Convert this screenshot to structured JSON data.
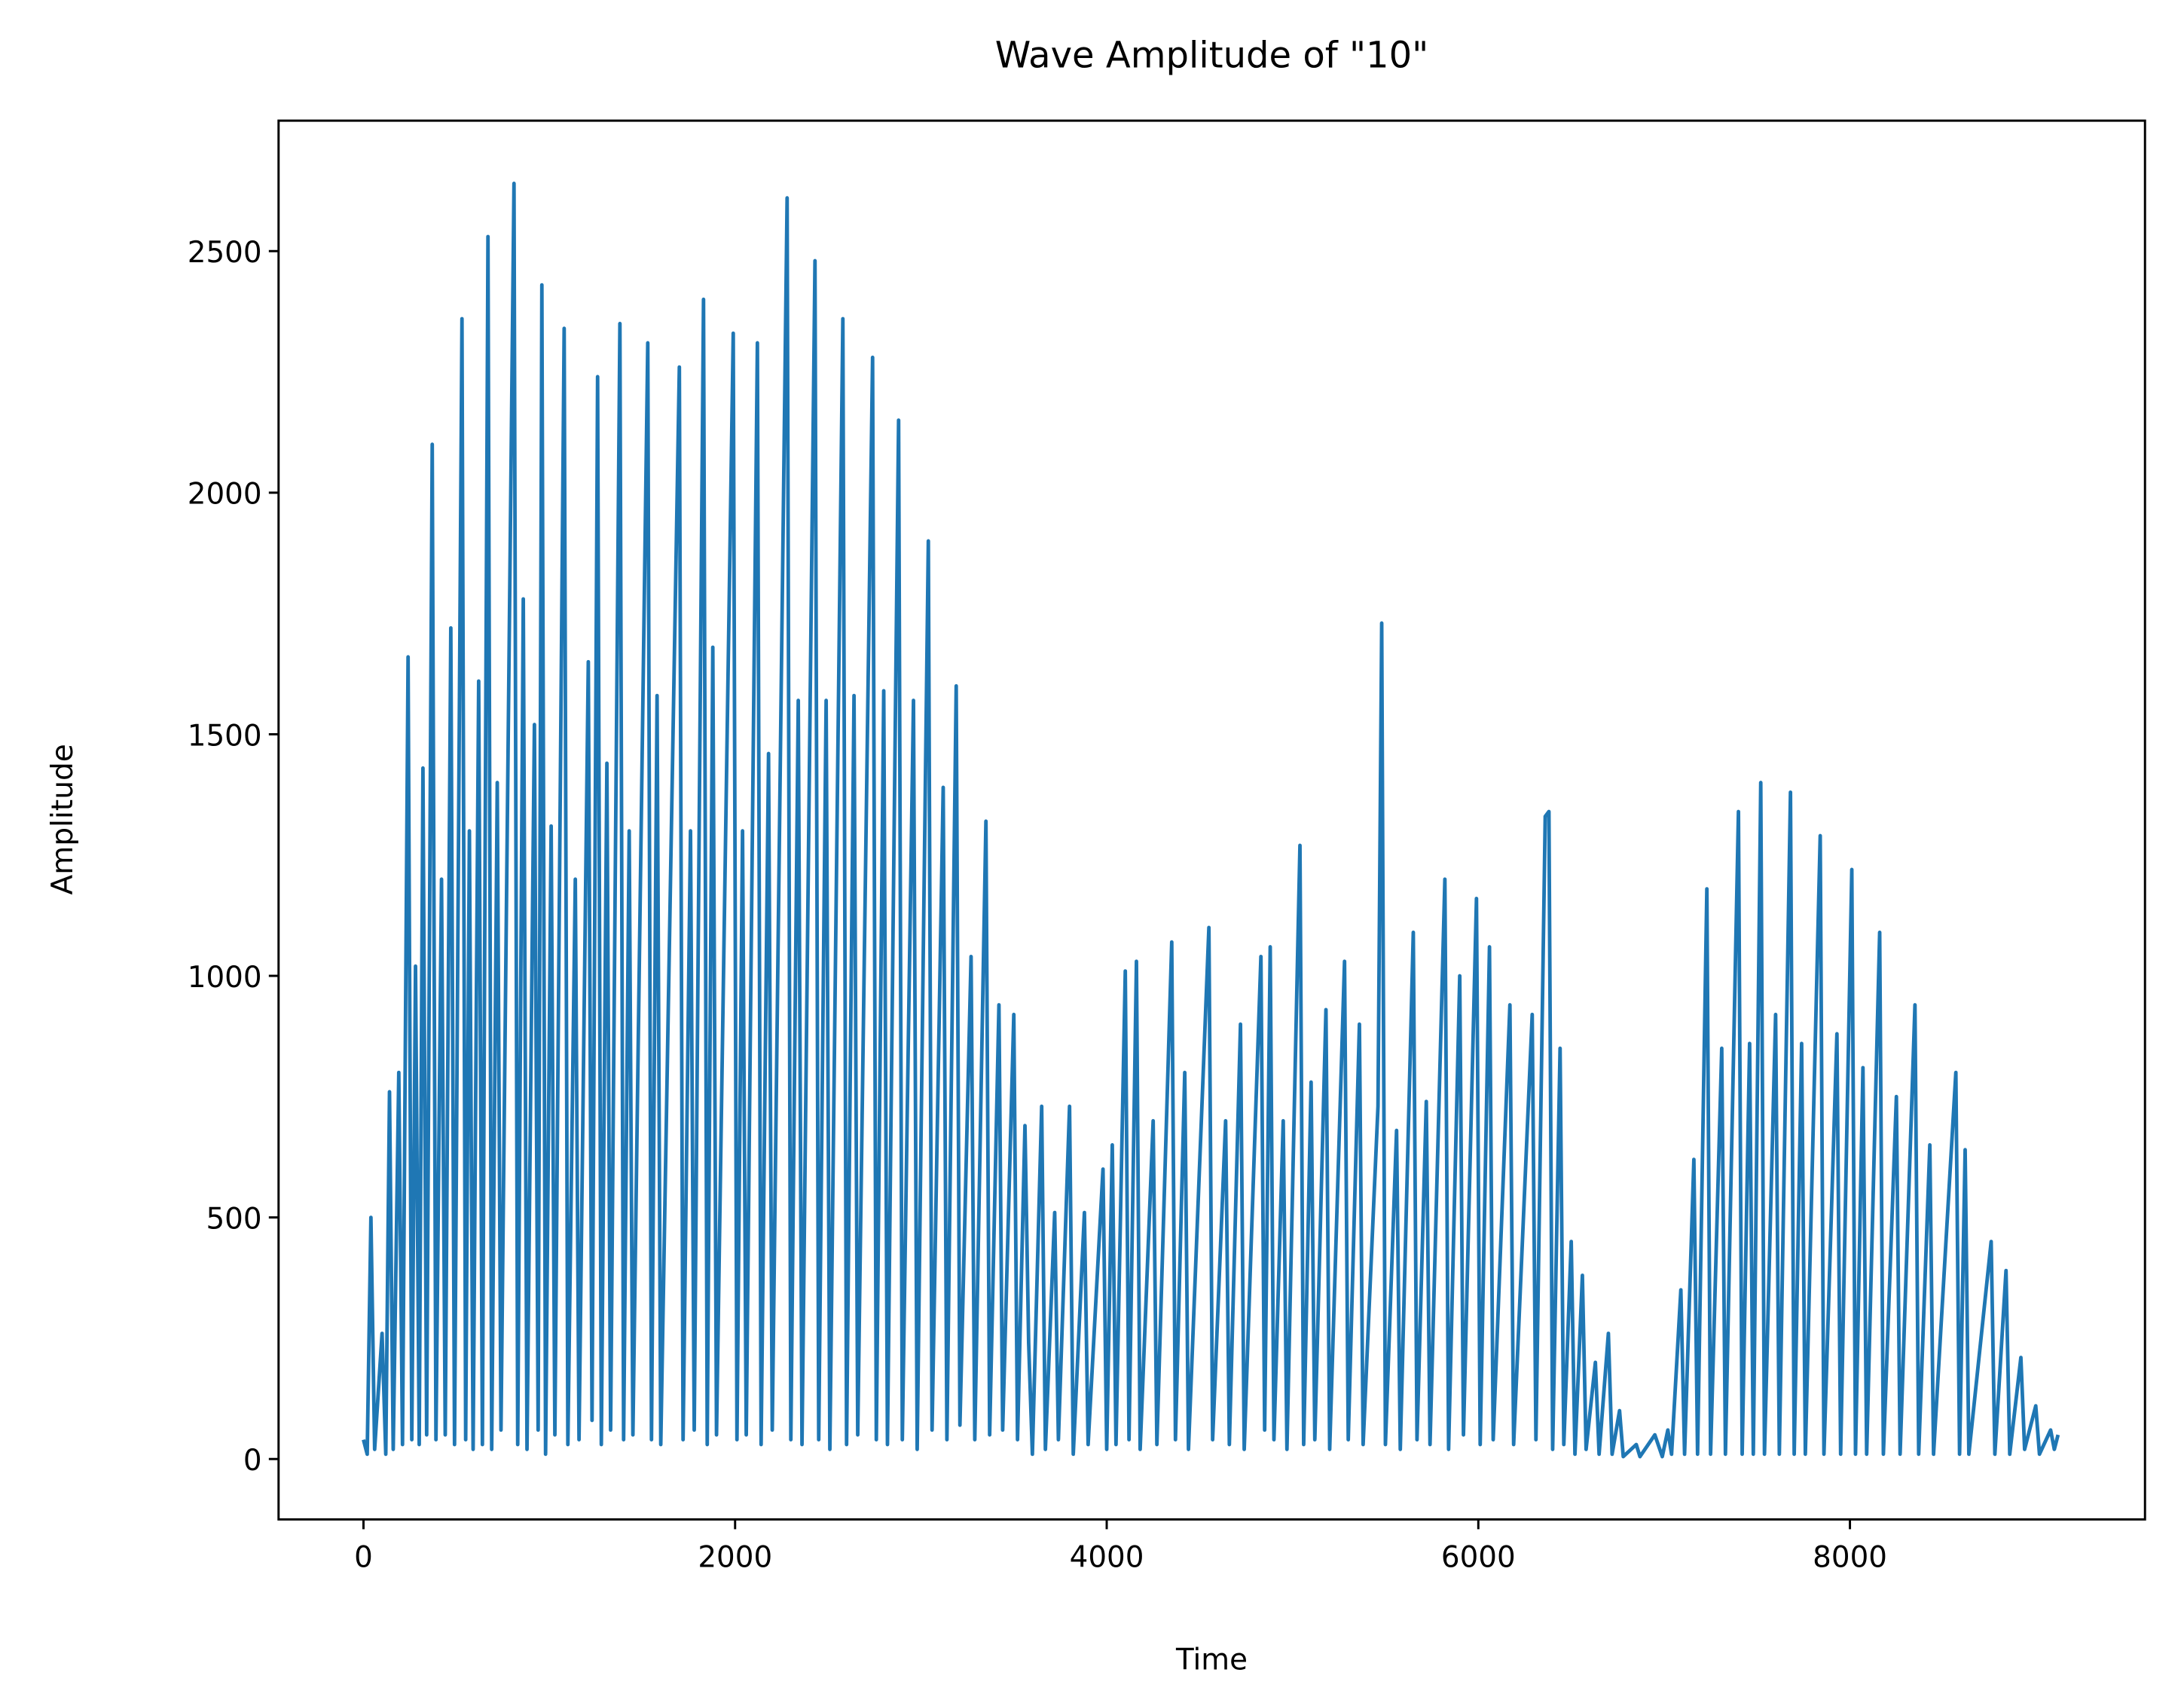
{
  "chart_data": {
    "type": "line",
    "title": "Wave Amplitude of \"10\"",
    "x_label": "Time",
    "y_label": "Amplitude",
    "color": "#1f77b4",
    "xlim": [
      -457,
      9588
    ],
    "ylim": [
      -125,
      2770
    ],
    "xticks": [
      0,
      2000,
      4000,
      6000,
      8000
    ],
    "yticks": [
      0,
      500,
      1000,
      1500,
      2000,
      2500
    ],
    "x": [
      0,
      20,
      40,
      60,
      100,
      120,
      140,
      160,
      190,
      210,
      240,
      260,
      280,
      300,
      320,
      340,
      370,
      390,
      420,
      440,
      470,
      490,
      530,
      550,
      570,
      590,
      620,
      640,
      670,
      690,
      720,
      740,
      810,
      830,
      860,
      880,
      920,
      940,
      960,
      980,
      1010,
      1030,
      1080,
      1100,
      1140,
      1160,
      1210,
      1230,
      1260,
      1280,
      1310,
      1330,
      1380,
      1400,
      1430,
      1450,
      1530,
      1550,
      1580,
      1600,
      1700,
      1720,
      1760,
      1780,
      1830,
      1850,
      1880,
      1900,
      1990,
      2010,
      2040,
      2060,
      2120,
      2140,
      2180,
      2200,
      2280,
      2300,
      2340,
      2360,
      2430,
      2450,
      2490,
      2510,
      2580,
      2600,
      2640,
      2660,
      2740,
      2760,
      2800,
      2820,
      2880,
      2900,
      2960,
      2980,
      3040,
      3060,
      3120,
      3140,
      3190,
      3210,
      3270,
      3290,
      3350,
      3370,
      3420,
      3440,
      3500,
      3520,
      3560,
      3580,
      3600,
      3650,
      3670,
      3720,
      3740,
      3800,
      3820,
      3880,
      3900,
      3980,
      4000,
      4030,
      4050,
      4100,
      4120,
      4160,
      4180,
      4250,
      4270,
      4350,
      4370,
      4420,
      4440,
      4550,
      4570,
      4640,
      4660,
      4720,
      4740,
      4830,
      4850,
      4880,
      4900,
      4950,
      4970,
      5040,
      5060,
      5100,
      5120,
      5180,
      5200,
      5280,
      5300,
      5360,
      5380,
      5460,
      5480,
      5500,
      5560,
      5580,
      5650,
      5670,
      5720,
      5740,
      5820,
      5840,
      5900,
      5920,
      5990,
      6010,
      6060,
      6080,
      6170,
      6190,
      6290,
      6310,
      6360,
      6380,
      6400,
      6440,
      6460,
      6500,
      6520,
      6560,
      6580,
      6630,
      6650,
      6700,
      6720,
      6760,
      6780,
      6850,
      6870,
      6950,
      6990,
      7020,
      7040,
      7090,
      7110,
      7160,
      7180,
      7230,
      7250,
      7310,
      7330,
      7400,
      7420,
      7460,
      7480,
      7520,
      7540,
      7600,
      7620,
      7680,
      7700,
      7740,
      7760,
      7840,
      7860,
      7930,
      7950,
      8010,
      8030,
      8070,
      8090,
      8160,
      8180,
      8250,
      8270,
      8350,
      8370,
      8430,
      8450,
      8570,
      8590,
      8620,
      8640,
      8760,
      8780,
      8840,
      8860,
      8920,
      8940,
      9000,
      9020,
      9080,
      9100,
      9120
    ],
    "values": [
      40,
      10,
      500,
      20,
      260,
      10,
      760,
      20,
      800,
      30,
      1660,
      40,
      1020,
      30,
      1430,
      50,
      2100,
      40,
      1200,
      50,
      1720,
      30,
      2360,
      40,
      1300,
      20,
      1610,
      30,
      2530,
      20,
      1400,
      60,
      2640,
      30,
      1780,
      20,
      1520,
      60,
      2430,
      10,
      1310,
      50,
      2340,
      30,
      1200,
      40,
      1650,
      80,
      2240,
      30,
      1440,
      60,
      2350,
      40,
      1300,
      50,
      2310,
      40,
      1580,
      30,
      2260,
      40,
      1300,
      60,
      2400,
      30,
      1680,
      50,
      2330,
      40,
      1300,
      50,
      2310,
      30,
      1460,
      60,
      2610,
      40,
      1570,
      30,
      2480,
      40,
      1570,
      20,
      2360,
      30,
      1580,
      50,
      2280,
      40,
      1590,
      30,
      2150,
      40,
      1570,
      20,
      1900,
      60,
      1390,
      40,
      1600,
      70,
      1040,
      40,
      1320,
      50,
      940,
      60,
      920,
      40,
      690,
      240,
      10,
      730,
      20,
      510,
      40,
      730,
      10,
      510,
      30,
      600,
      20,
      650,
      30,
      1010,
      40,
      1030,
      20,
      700,
      30,
      1070,
      40,
      800,
      20,
      1100,
      40,
      700,
      30,
      900,
      20,
      1040,
      60,
      1060,
      40,
      700,
      20,
      1270,
      30,
      780,
      40,
      930,
      20,
      1030,
      40,
      900,
      30,
      730,
      1730,
      30,
      680,
      20,
      1090,
      40,
      740,
      30,
      1200,
      20,
      1000,
      50,
      1160,
      30,
      1060,
      40,
      940,
      30,
      920,
      40,
      1330,
      1340,
      20,
      850,
      30,
      450,
      10,
      380,
      20,
      200,
      10,
      260,
      10,
      100,
      5,
      30,
      5,
      50,
      5,
      60,
      10,
      350,
      10,
      620,
      10,
      1180,
      10,
      850,
      10,
      1340,
      10,
      860,
      10,
      1400,
      10,
      920,
      10,
      1380,
      10,
      860,
      10,
      1290,
      10,
      880,
      10,
      1220,
      10,
      810,
      10,
      1090,
      10,
      750,
      10,
      940,
      10,
      650,
      10,
      800,
      10,
      640,
      10,
      450,
      10,
      390,
      10,
      210,
      20,
      110,
      10,
      60,
      20,
      50
    ]
  }
}
